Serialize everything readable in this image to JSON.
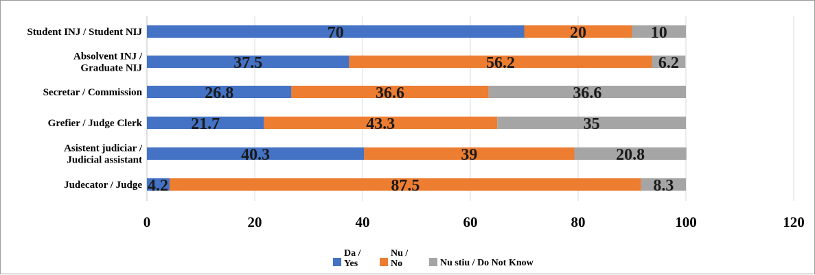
{
  "chart_data": {
    "type": "bar",
    "orientation": "horizontal",
    "stacked": true,
    "categories": [
      [
        "Student INJ / Student NIJ"
      ],
      [
        "Absolvent INJ /",
        "Graduate NIJ"
      ],
      [
        "Secretar / Commission"
      ],
      [
        "Grefier / Judge Clerk"
      ],
      [
        "Asistent judiciar /",
        "Judicial assistant"
      ],
      [
        "Judecator / Judge"
      ]
    ],
    "series": [
      {
        "name": [
          "Da /",
          "Yes"
        ],
        "color": "#4472C4",
        "values": [
          70,
          37.5,
          26.8,
          21.7,
          40.3,
          4.2
        ]
      },
      {
        "name": [
          "Nu /",
          "No"
        ],
        "color": "#ED7D31",
        "values": [
          20,
          56.2,
          36.6,
          43.3,
          39,
          87.5
        ]
      },
      {
        "name": [
          "Nu stiu / Do Not Know"
        ],
        "color": "#A5A5A5",
        "values": [
          10,
          6.2,
          36.6,
          35,
          20.8,
          8.3
        ]
      }
    ],
    "xlim": [
      0,
      120
    ],
    "xticks": [
      "0",
      "20",
      "40",
      "60",
      "80",
      "100",
      "120"
    ],
    "grid": "vertical",
    "legend_position": "bottom",
    "title": "",
    "xlabel": "",
    "ylabel": ""
  }
}
